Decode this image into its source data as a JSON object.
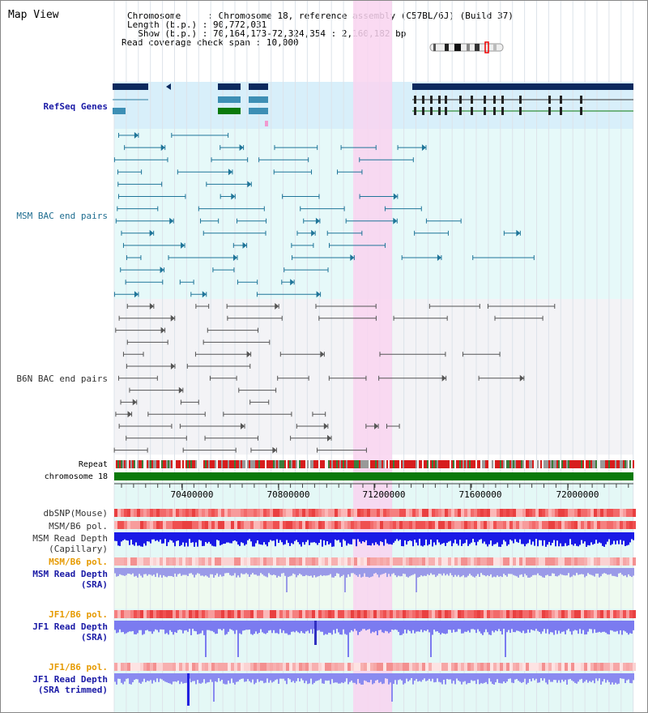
{
  "title": "Map View",
  "info": {
    "chromosome_label": "Chromosome",
    "chromosome_value": "Chromosome 18, reference assembly (C57BL/6J) (Build 37)",
    "length_label": "Length (b.p.)",
    "length_value": "90,772,031",
    "show_label": "Show (b.p.)",
    "show_value": "70,164,173-72,324,354 : 2,160,182 bp",
    "coverage_label": "Read coverage check span",
    "coverage_value": "10,000"
  },
  "tracks": {
    "refseq": "RefSeq Genes",
    "msm_bac": "MSM BAC end pairs",
    "b6n_bac": "B6N BAC end pairs",
    "repeat": "Repeat",
    "chromosome": "chromosome 18",
    "dbsnp": "dbSNP(Mouse)",
    "msm_b6_pol_1": "MSM/B6 pol.",
    "msm_read_depth_cap_1": "MSM Read Depth",
    "msm_read_depth_cap_2": "(Capillary)",
    "msm_b6_pol_2": "MSM/B6 pol.",
    "msm_read_depth_sra_1": "MSM Read Depth",
    "msm_read_depth_sra_2": "(SRA)",
    "jf1_b6_pol_1": "JF1/B6 pol.",
    "jf1_read_depth_sra_1": "JF1 Read Depth",
    "jf1_read_depth_sra_2": "(SRA)",
    "jf1_b6_pol_2": "JF1/B6 pol.",
    "jf1_read_depth_trim_1": "JF1 Read Depth",
    "jf1_read_depth_trim_2": "(SRA trimmed)"
  },
  "axis": {
    "ticks": [
      "70400000",
      "70800000",
      "71200000",
      "71600000",
      "72000000"
    ]
  },
  "colors": {
    "highlight": "#f9d3f0",
    "refseq_bg": "#d8effa",
    "msm_bg": "#e6f9f9",
    "b6n_bg": "#f3f3f6",
    "teal": "#1f7599",
    "gray": "#555",
    "green": "#0b7a0b",
    "navy": "#0c2a5e"
  }
}
